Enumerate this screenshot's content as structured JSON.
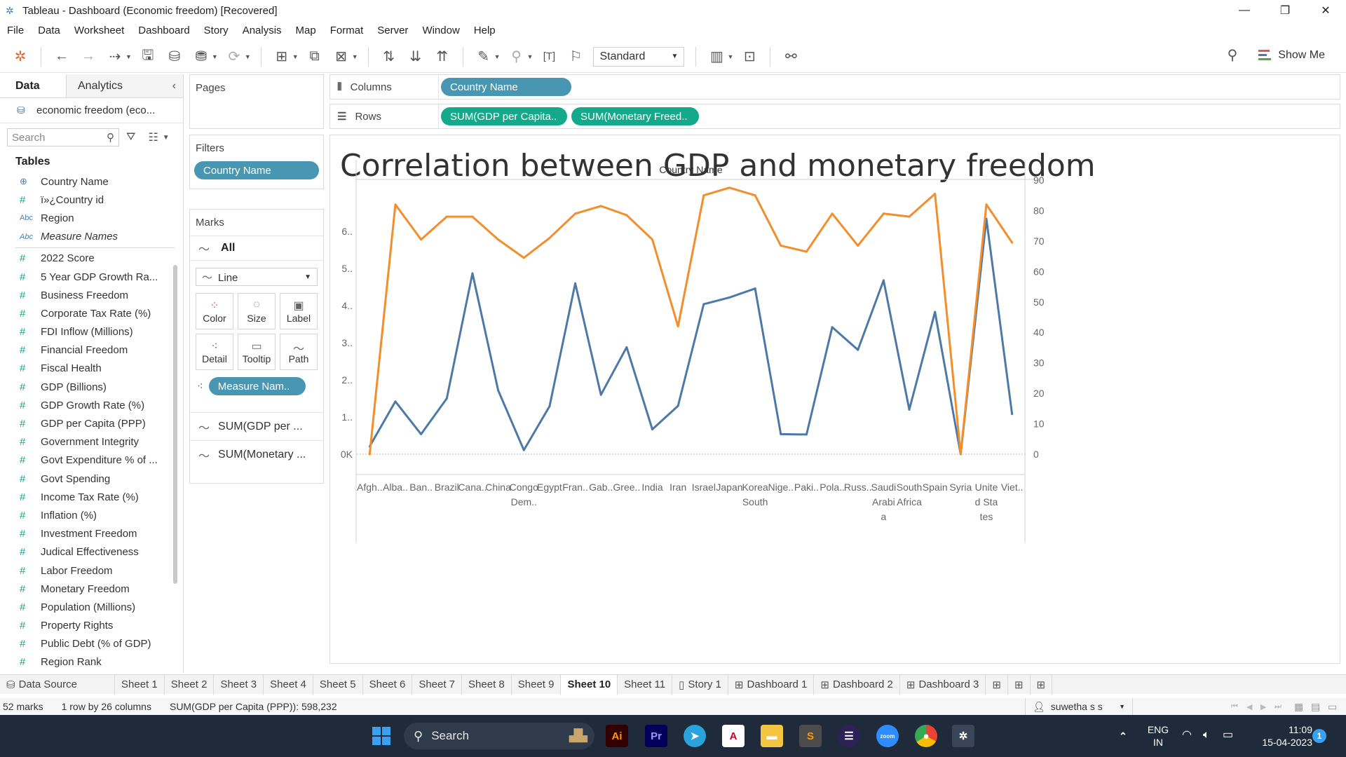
{
  "window": {
    "title": "Tableau - Dashboard (Economic freedom) [Recovered]",
    "controls": [
      "minimize-icon",
      "restore-icon",
      "close-icon"
    ]
  },
  "menu": [
    "File",
    "Data",
    "Worksheet",
    "Dashboard",
    "Story",
    "Analysis",
    "Map",
    "Format",
    "Server",
    "Window",
    "Help"
  ],
  "toolbar": {
    "fit_select": "Standard",
    "show_me": "Show Me"
  },
  "data_pane": {
    "tab_data": "Data",
    "tab_analytics": "Analytics",
    "datasource": "economic freedom (eco...",
    "search_placeholder": "Search",
    "tables_heading": "Tables",
    "fields": [
      {
        "name": "Country Name",
        "type": "globe"
      },
      {
        "name": "ï»¿Country id",
        "type": "num"
      },
      {
        "name": "Region",
        "type": "abc"
      },
      {
        "name": "Measure Names",
        "type": "abc",
        "italic": true
      },
      {
        "name": "2022 Score",
        "type": "num"
      },
      {
        "name": "5 Year GDP Growth Ra...",
        "type": "num"
      },
      {
        "name": "Business Freedom",
        "type": "num"
      },
      {
        "name": "Corporate Tax Rate (%)",
        "type": "num"
      },
      {
        "name": "FDI Inflow (Millions)",
        "type": "num"
      },
      {
        "name": "Financial Freedom",
        "type": "num"
      },
      {
        "name": "Fiscal Health",
        "type": "num"
      },
      {
        "name": "GDP (Billions)",
        "type": "num"
      },
      {
        "name": "GDP Growth Rate (%)",
        "type": "num"
      },
      {
        "name": "GDP per Capita (PPP)",
        "type": "num"
      },
      {
        "name": "Government Integrity",
        "type": "num"
      },
      {
        "name": "Govt Expenditure % of ...",
        "type": "num"
      },
      {
        "name": "Govt Spending",
        "type": "num"
      },
      {
        "name": "Income Tax Rate (%)",
        "type": "num"
      },
      {
        "name": "Inflation (%)",
        "type": "num"
      },
      {
        "name": "Investment Freedom",
        "type": "num"
      },
      {
        "name": "Judical Effectiveness",
        "type": "num"
      },
      {
        "name": "Labor Freedom",
        "type": "num"
      },
      {
        "name": "Monetary Freedom",
        "type": "num"
      },
      {
        "name": "Population (Millions)",
        "type": "num"
      },
      {
        "name": "Property Rights",
        "type": "num"
      },
      {
        "name": "Public Debt (% of GDP)",
        "type": "num"
      },
      {
        "name": "Region Rank",
        "type": "num"
      }
    ]
  },
  "cards": {
    "pages_title": "Pages",
    "filters_title": "Filters",
    "filter_pill": "Country Name",
    "marks_title": "Marks",
    "marks_all": "All",
    "mark_type": "Line",
    "mark_buttons": [
      "Color",
      "Size",
      "Label",
      "Detail",
      "Tooltip",
      "Path"
    ],
    "measure_names_pill": "Measure Nam..",
    "measures": [
      "SUM(GDP per ...",
      "SUM(Monetary ..."
    ]
  },
  "shelves": {
    "columns_label": "Columns",
    "rows_label": "Rows",
    "columns_pills": [
      "Country Name"
    ],
    "rows_pills": [
      "SUM(GDP per Capita..",
      "SUM(Monetary Freed.."
    ]
  },
  "chart_data": {
    "type": "line",
    "title": "Correlation between GDP and monetary freedom",
    "column_header": "Country Name",
    "categories": [
      "Afgh..",
      "Alba..",
      "Ban..",
      "Brazil",
      "Cana..",
      "China",
      "Congo Dem..",
      "Egypt",
      "Fran..",
      "Gab..",
      "Gree..",
      "India",
      "Iran",
      "Israel",
      "Japan",
      "Korea South",
      "Nige..",
      "Paki..",
      "Pola..",
      "Russ..",
      "Saudi Arabia",
      "South Africa",
      "Spain",
      "Syria",
      "United States",
      "Viet.."
    ],
    "category_lines": [
      [
        "Afgh.."
      ],
      [
        "Alba.."
      ],
      [
        "Ban.."
      ],
      [
        "Brazil"
      ],
      [
        "Cana.."
      ],
      [
        "China"
      ],
      [
        "Congo",
        "Dem.."
      ],
      [
        "Egypt"
      ],
      [
        "Fran.."
      ],
      [
        "Gab.."
      ],
      [
        "Gree.."
      ],
      [
        "India"
      ],
      [
        "Iran"
      ],
      [
        "Israel"
      ],
      [
        "Japan"
      ],
      [
        "Korea",
        "South"
      ],
      [
        "Nige.."
      ],
      [
        "Paki.."
      ],
      [
        "Pola.."
      ],
      [
        "Russ.."
      ],
      [
        "Saudi",
        "Arabi",
        "a"
      ],
      [
        "South",
        "Africa"
      ],
      [
        "Spain"
      ],
      [
        "Syria"
      ],
      [
        "Unite",
        "d Sta",
        "tes"
      ],
      [
        "Viet.."
      ]
    ],
    "left_axis": {
      "ticks": [
        "0K",
        "1..",
        "2..",
        "3..",
        "4..",
        "5..",
        "6.."
      ],
      "ylim": [
        0,
        67000
      ]
    },
    "right_axis": {
      "ticks": [
        "0",
        "10",
        "20",
        "30",
        "40",
        "50",
        "60",
        "70",
        "80",
        "90"
      ],
      "ylim": [
        0,
        90
      ]
    },
    "series": [
      {
        "name": "SUM(GDP per Capita (PPP))",
        "axis": "left",
        "color": "#4e79a7",
        "values": [
          2100,
          14200,
          5400,
          15000,
          48700,
          17200,
          1100,
          12900,
          46000,
          16000,
          28800,
          6700,
          13000,
          40400,
          42200,
          44600,
          5400,
          5300,
          34200,
          28100,
          46800,
          12000,
          38300,
          0,
          63400,
          10800
        ]
      },
      {
        "name": "SUM(Monetary Freedom)",
        "axis": "right",
        "color": "#f28e2b",
        "values": [
          0,
          82,
          70.5,
          78,
          78,
          70.5,
          64.5,
          71,
          79,
          81.5,
          78.5,
          70.5,
          42,
          85,
          87.5,
          85,
          68.5,
          66.5,
          79,
          68.5,
          79,
          78,
          85.5,
          0,
          82,
          69.5
        ]
      }
    ],
    "grid": false
  },
  "sheet_tabs": [
    {
      "label": "Data Source",
      "icon": "datasource-icon"
    },
    {
      "label": "Sheet 1"
    },
    {
      "label": "Sheet 2"
    },
    {
      "label": "Sheet 3"
    },
    {
      "label": "Sheet 4"
    },
    {
      "label": "Sheet 5"
    },
    {
      "label": "Sheet 6"
    },
    {
      "label": "Sheet 7"
    },
    {
      "label": "Sheet 8"
    },
    {
      "label": "Sheet 9"
    },
    {
      "label": "Sheet 10",
      "active": true
    },
    {
      "label": "Sheet 11"
    },
    {
      "label": "Story 1",
      "icon": "story-icon"
    },
    {
      "label": "Dashboard 1",
      "icon": "dashboard-icon"
    },
    {
      "label": "Dashboard 2",
      "icon": "dashboard-icon"
    },
    {
      "label": "Dashboard 3",
      "icon": "dashboard-icon"
    }
  ],
  "status": {
    "marks": "52 marks",
    "layout": "1 row by 26 columns",
    "sum": "SUM(GDP per Capita (PPP)): 598,232",
    "user": "suwetha s s"
  },
  "taskbar": {
    "search_label": "Search",
    "lang_line1": "ENG",
    "lang_line2": "IN",
    "time": "11:09",
    "date": "15-04-2023",
    "notification_count": "1"
  }
}
